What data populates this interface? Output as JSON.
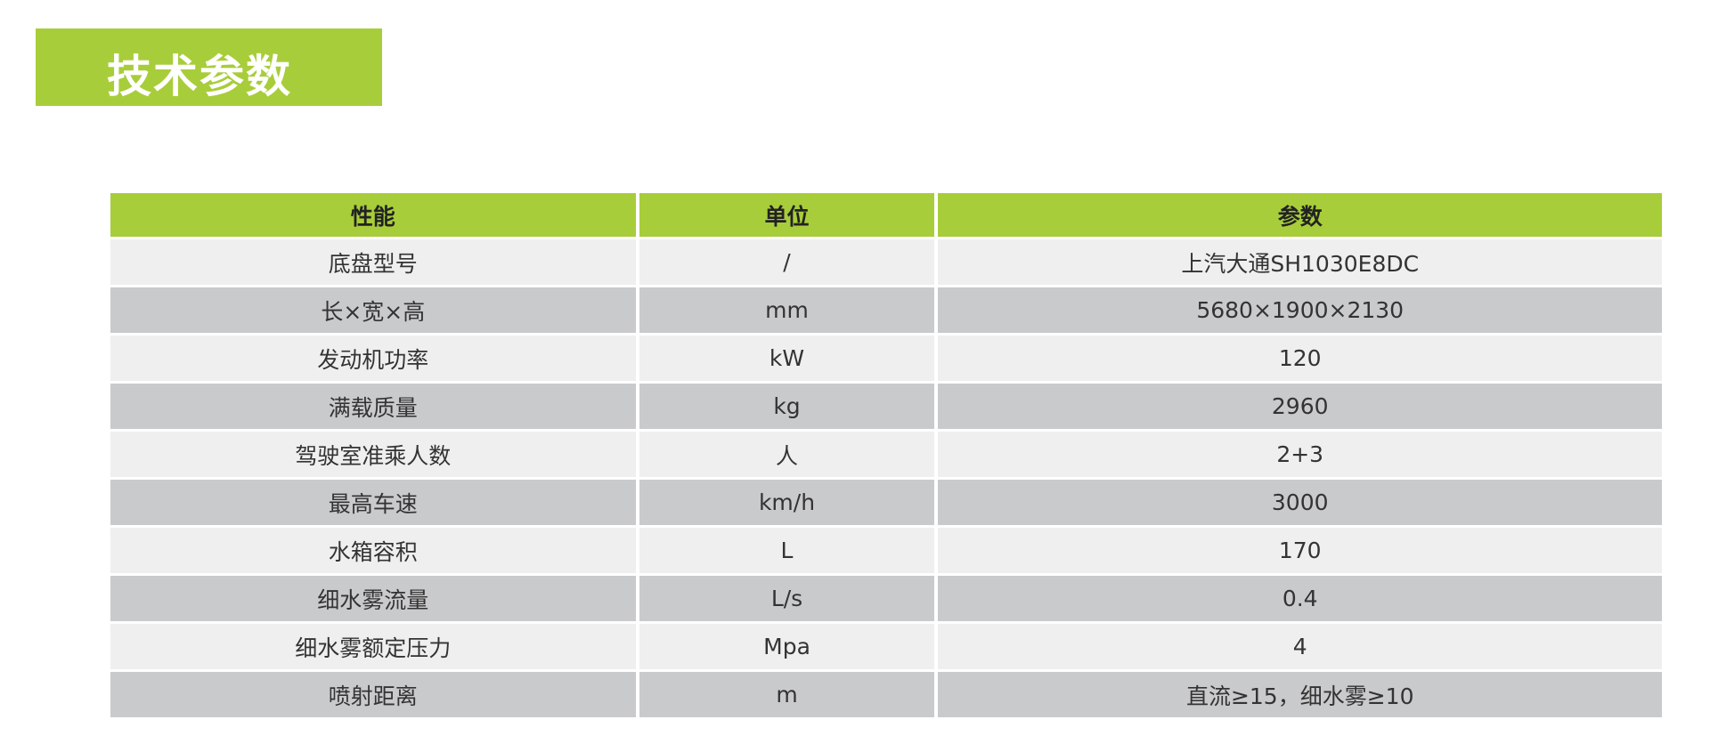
{
  "title": "技术参数",
  "colors": {
    "accent": "#a8cd3a",
    "row_light": "#efefef",
    "row_dark": "#c9cacb"
  },
  "table": {
    "headers": [
      "性能",
      "单位",
      "参数"
    ],
    "rows": [
      [
        "底盘型号",
        "/",
        "上汽大通SH1030E8DC"
      ],
      [
        "长×宽×高",
        "mm",
        "5680×1900×2130"
      ],
      [
        "发动机功率",
        "kW",
        "120"
      ],
      [
        "满载质量",
        "kg",
        "2960"
      ],
      [
        "驾驶室准乘人数",
        "人",
        "2+3"
      ],
      [
        "最高车速",
        "km/h",
        "3000"
      ],
      [
        "水箱容积",
        "L",
        "170"
      ],
      [
        "细水雾流量",
        "L/s",
        "0.4"
      ],
      [
        "细水雾额定压力",
        "Mpa",
        "4"
      ],
      [
        "喷射距离",
        "m",
        "直流≥15，细水雾≥10"
      ]
    ]
  }
}
